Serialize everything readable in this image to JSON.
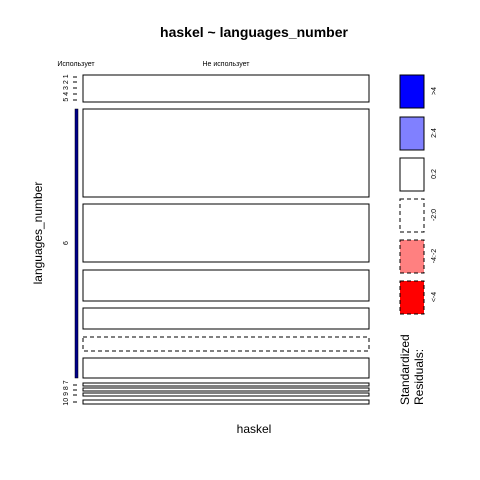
{
  "title": "haskel ~ languages_number",
  "x_label": "haskel",
  "y_label": "languages_number",
  "columns": [
    "Использует",
    "Не использует"
  ],
  "row_groups": [
    "5 4 3 2 1",
    "6",
    "10 9 8 7"
  ],
  "legend": {
    "title": [
      "Standardized",
      "Residuals:"
    ],
    "items": [
      ">4",
      "2:4",
      "0:2",
      "-2:0",
      "-4:-2",
      "<-4"
    ]
  }
}
